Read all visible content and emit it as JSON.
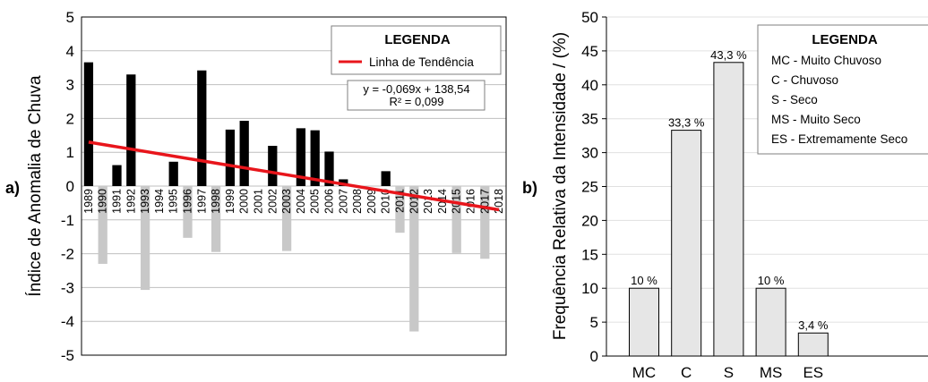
{
  "chart_data": [
    {
      "type": "bar",
      "panel_label": "a)",
      "ylabel": "Índice de Anomalia de Chuva",
      "ylim": [
        -5,
        5
      ],
      "yticks": [
        "5",
        "4",
        "3",
        "2",
        "1",
        "0",
        "-1",
        "-2",
        "-3",
        "-4",
        "-5"
      ],
      "grid": true,
      "categories": [
        "1989",
        "1990",
        "1991",
        "1992",
        "1993",
        "1994",
        "1995",
        "1996",
        "1997",
        "1998",
        "1999",
        "2000",
        "2001",
        "2002",
        "2003",
        "2004",
        "2005",
        "2006",
        "2007",
        "2008",
        "2009",
        "2010",
        "2011",
        "2012",
        "2013",
        "2014",
        "2015",
        "2016",
        "2017",
        "2018"
      ],
      "values": [
        3.66,
        -2.3,
        0.62,
        3.3,
        -3.07,
        0,
        0.72,
        -1.53,
        3.42,
        -1.95,
        1.67,
        1.93,
        0,
        1.19,
        -1.92,
        1.71,
        1.65,
        1.02,
        0.2,
        0,
        0,
        0.44,
        -1.38,
        -4.3,
        0,
        0,
        -1.98,
        0,
        -2.15,
        0
      ],
      "colors": {
        "positive": "#000000",
        "negative": "#c8c8c8",
        "trend": "#e8151b"
      },
      "trend": {
        "slope": -0.069,
        "intercept": 138.54
      },
      "legend": {
        "title": "LEGENDA",
        "entry": "Linha de Tendência",
        "equation": "y = -0,069x + 138,54",
        "r2": "R² = 0,099"
      }
    },
    {
      "type": "bar",
      "panel_label": "b)",
      "ylabel": "Frequência Relativa da Intensidade / (%)",
      "ylim": [
        0,
        50
      ],
      "yticks": [
        "50",
        "45",
        "40",
        "35",
        "30",
        "25",
        "20",
        "15",
        "10",
        "5",
        "0"
      ],
      "grid": true,
      "categories": [
        "MC",
        "C",
        "S",
        "MS",
        "ES"
      ],
      "values": [
        10,
        33.3,
        43.3,
        10,
        3.4
      ],
      "data_labels": [
        "10 %",
        "33,3 %",
        "43,3 %",
        "10 %",
        "3,4 %"
      ],
      "colors": {
        "bar": "#e6e6e6"
      },
      "legend": {
        "title": "LEGENDA",
        "items": [
          "MC - Muito Chuvoso",
          "C - Chuvoso",
          "S - Seco",
          "MS - Muito Seco",
          "ES - Extremamente Seco"
        ]
      }
    }
  ]
}
